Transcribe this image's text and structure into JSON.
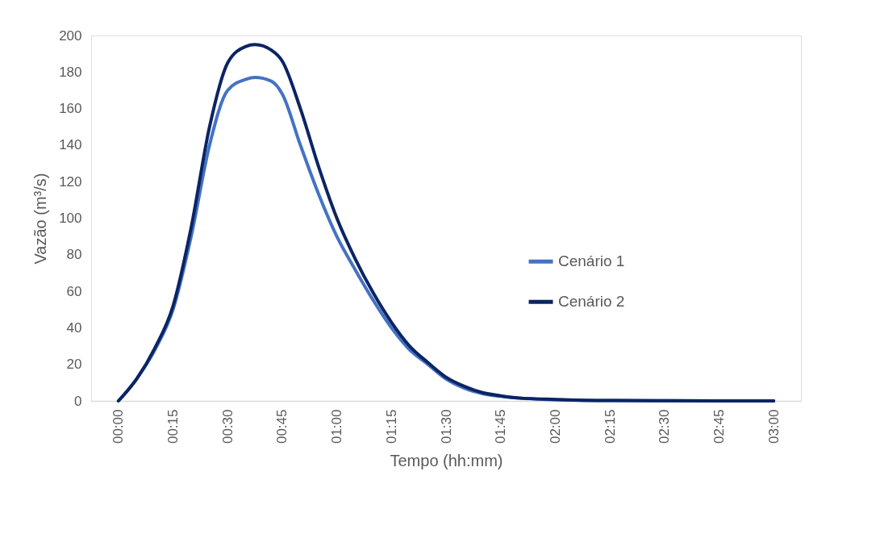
{
  "chart_data": {
    "type": "line",
    "xlabel": "Tempo (hh:mm)",
    "ylabel": "Vazão (m³/s)",
    "x": [
      0,
      0.083,
      0.167,
      0.25,
      0.333,
      0.417,
      0.5,
      0.583,
      0.625,
      0.7,
      0.75,
      0.833,
      0.917,
      1,
      1.083,
      1.167,
      1.25,
      1.333,
      1.417,
      1.5,
      1.583,
      1.667,
      1.75,
      1.833,
      2,
      2.25,
      2.5,
      3
    ],
    "series": [
      {
        "name": "Cenário 1",
        "color": "#4472c4",
        "values": [
          0,
          12,
          28,
          50,
          90,
          140,
          170,
          176,
          177,
          175,
          168,
          140,
          113,
          90,
          72,
          55,
          40,
          28,
          20,
          12,
          7,
          4,
          2.5,
          1.5,
          0.7,
          0.2,
          0.1,
          0
        ]
      },
      {
        "name": "Cenário 2",
        "color": "#0b2463",
        "values": [
          0,
          12,
          29,
          52,
          95,
          150,
          185,
          194,
          195,
          192,
          186,
          160,
          128,
          100,
          78,
          59,
          43,
          30,
          21,
          13,
          8,
          4.5,
          2.8,
          1.6,
          0.8,
          0.2,
          0.1,
          0
        ]
      }
    ],
    "xlim": [
      -0.125,
      3.125
    ],
    "xticks": [
      {
        "value": 0,
        "label": "00:00"
      },
      {
        "value": 0.25,
        "label": "00:15"
      },
      {
        "value": 0.5,
        "label": "00:30"
      },
      {
        "value": 0.75,
        "label": "00:45"
      },
      {
        "value": 1,
        "label": "01:00"
      },
      {
        "value": 1.25,
        "label": "01:15"
      },
      {
        "value": 1.5,
        "label": "01:30"
      },
      {
        "value": 1.75,
        "label": "01:45"
      },
      {
        "value": 2,
        "label": "02:00"
      },
      {
        "value": 2.25,
        "label": "02:15"
      },
      {
        "value": 2.5,
        "label": "02:30"
      },
      {
        "value": 2.75,
        "label": "02:45"
      },
      {
        "value": 3,
        "label": "03:00"
      }
    ],
    "ylim": [
      0,
      200
    ],
    "yticks": [
      0,
      20,
      40,
      60,
      80,
      100,
      120,
      140,
      160,
      180,
      200
    ],
    "grid": false,
    "legend": "right",
    "marker": "none",
    "line_style": "solid"
  }
}
